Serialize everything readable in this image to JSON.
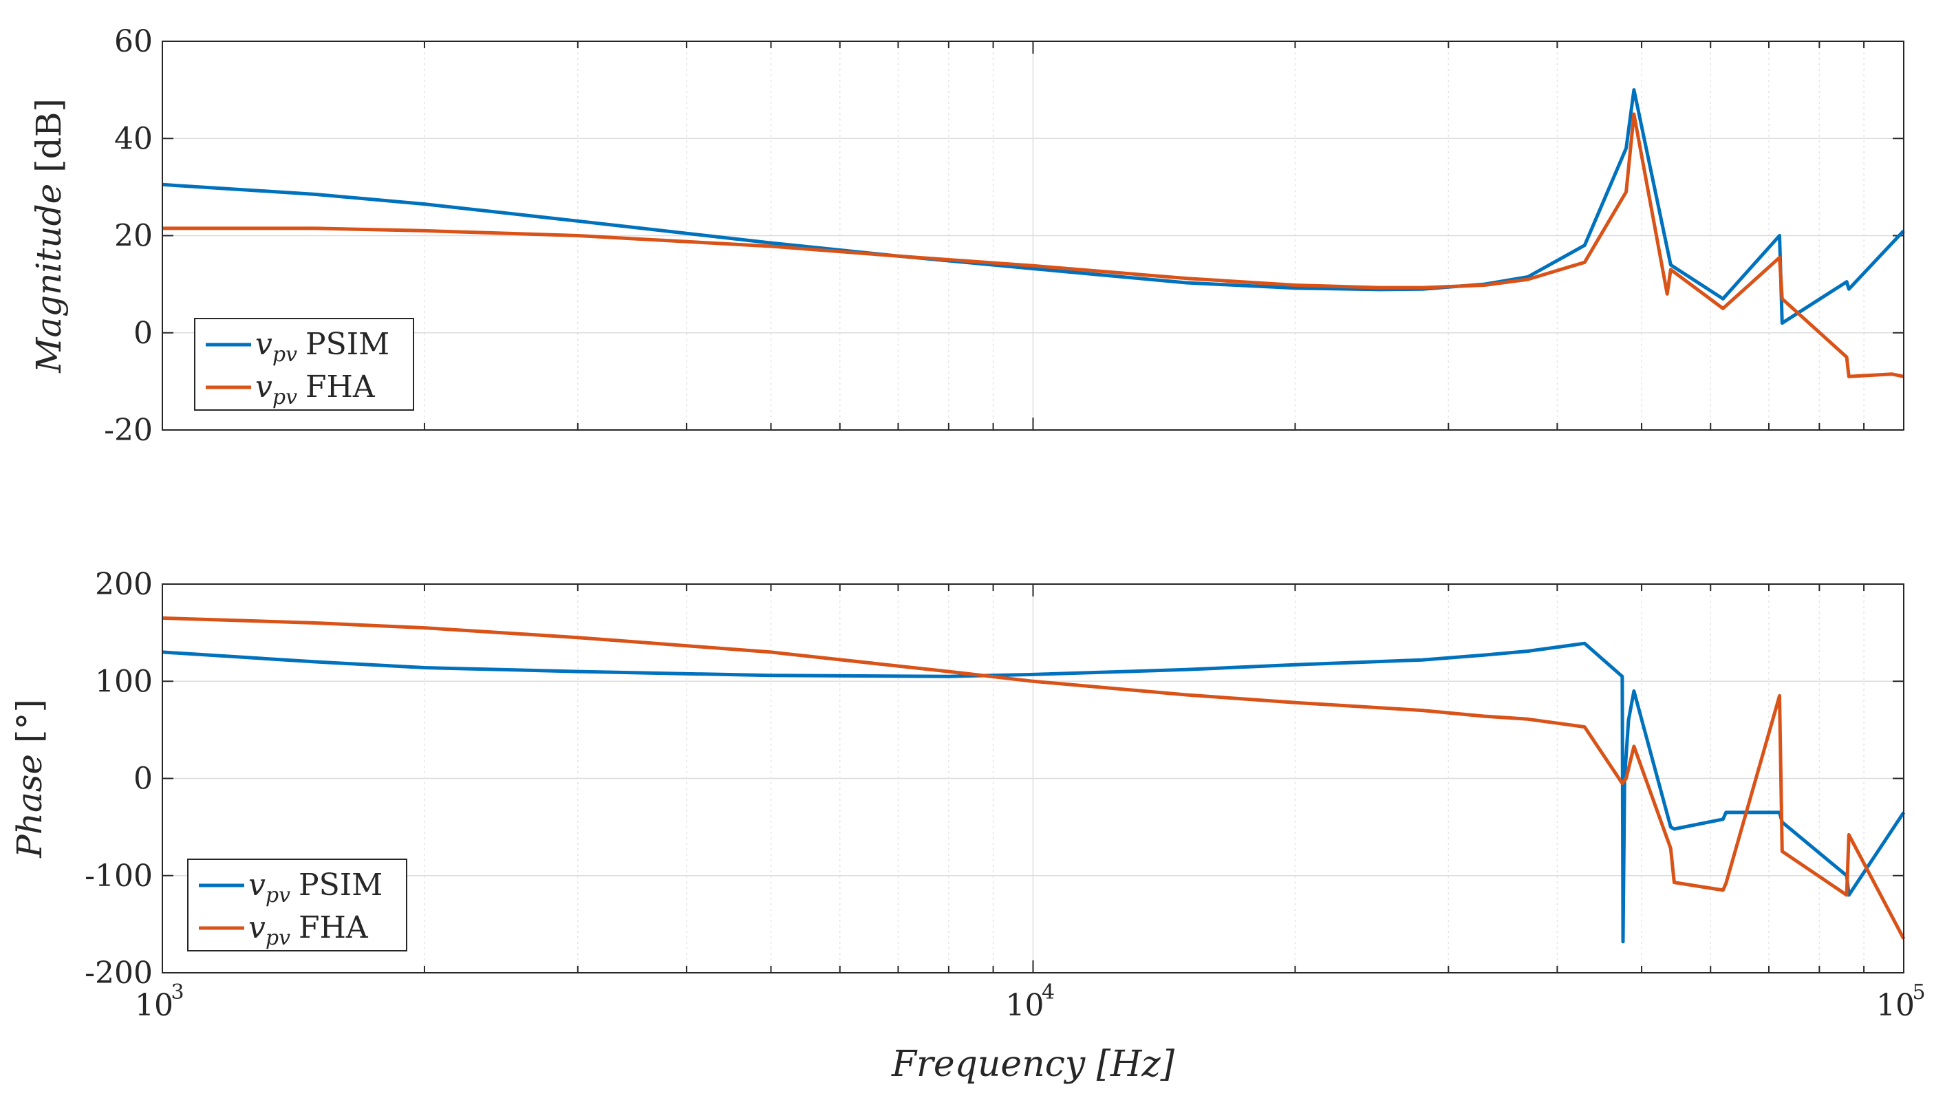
{
  "figure": {
    "colors": {
      "psim": "#0072BD",
      "fha": "#D95319",
      "axes": "#262626",
      "grid": "#dcdcdc"
    }
  },
  "chart_data": [
    {
      "type": "line",
      "panel": "magnitude",
      "xscale": "log",
      "xlim": [
        1000,
        100000
      ],
      "ylim": [
        -20,
        60
      ],
      "yticks": [
        "-20",
        "0",
        "20",
        "40",
        "60"
      ],
      "xticks": [],
      "ylabel": "Magnitude [dB]",
      "ylabel_main": "Magnitude",
      "ylabel_unit": "[dB]",
      "xlabel": "",
      "grid": true,
      "legend": {
        "position": "bottom-left",
        "entries": [
          {
            "var": "v",
            "sub": "pv",
            "text": "PSIM"
          },
          {
            "var": "v",
            "sub": "pv",
            "text": "FHA"
          }
        ]
      },
      "series": [
        {
          "name": "v_pv PSIM",
          "x": [
            1000,
            1500,
            2000,
            3000,
            5000,
            7000,
            10000,
            15000,
            20000,
            25000,
            28000,
            33000,
            37000,
            43000,
            48000,
            49000,
            54000,
            54500,
            62000,
            72000,
            72500,
            86000,
            86500,
            100000
          ],
          "y": [
            30.5,
            28.5,
            26.5,
            23,
            18.5,
            15.8,
            13.2,
            10.3,
            9.2,
            8.9,
            9,
            10,
            11.5,
            18,
            38,
            50,
            14,
            13.5,
            7,
            20,
            2,
            10.5,
            9,
            21
          ]
        },
        {
          "name": "v_pv FHA",
          "x": [
            1000,
            1500,
            2000,
            3000,
            5000,
            7000,
            10000,
            15000,
            20000,
            25000,
            28000,
            33000,
            37000,
            43000,
            48000,
            49000,
            53500,
            54000,
            62000,
            72000,
            72500,
            86000,
            86500,
            97000,
            100000
          ],
          "y": [
            21.5,
            21.5,
            21,
            20,
            17.8,
            15.8,
            13.8,
            11.2,
            9.8,
            9.3,
            9.3,
            9.8,
            11,
            14.5,
            29,
            45,
            8,
            13,
            5,
            15.5,
            7,
            -5,
            -9,
            -8.5,
            -9
          ]
        }
      ]
    },
    {
      "type": "line",
      "panel": "phase",
      "xscale": "log",
      "xlim": [
        1000,
        100000
      ],
      "ylim": [
        -200,
        200
      ],
      "yticks": [
        "-200",
        "-100",
        "0",
        "100",
        "200"
      ],
      "xticks": [
        {
          "base": "10",
          "exp": "3"
        },
        {
          "base": "10",
          "exp": "4"
        },
        {
          "base": "10",
          "exp": "5"
        }
      ],
      "ylabel": "Phase [°]",
      "ylabel_main": "Phase",
      "ylabel_unit": "[°]",
      "xlabel": "Frequency [Hz]",
      "xlabel_main": "Frequency",
      "xlabel_unit": "[Hz]",
      "grid": true,
      "legend": {
        "position": "bottom-left",
        "entries": [
          {
            "var": "v",
            "sub": "pv",
            "text": "PSIM"
          },
          {
            "var": "v",
            "sub": "pv",
            "text": "FHA"
          }
        ]
      },
      "series": [
        {
          "name": "v_pv PSIM",
          "x": [
            1000,
            1500,
            2000,
            3000,
            5000,
            8000,
            10000,
            15000,
            20000,
            28000,
            33000,
            37000,
            43000,
            47500,
            47600,
            47800,
            48300,
            49000,
            54000,
            54500,
            62000,
            62500,
            72000,
            72500,
            86000,
            86500,
            100000
          ],
          "y": [
            130,
            120,
            114,
            110,
            106,
            105,
            107,
            112,
            117,
            122,
            127,
            131,
            139,
            105,
            -168,
            0,
            60,
            90,
            -50,
            -52,
            -42,
            -35,
            -35,
            -45,
            -100,
            -120,
            -35
          ]
        },
        {
          "name": "v_pv FHA",
          "x": [
            1000,
            1500,
            2000,
            3000,
            5000,
            8000,
            10000,
            15000,
            20000,
            28000,
            33000,
            37000,
            43000,
            47500,
            48000,
            49000,
            54000,
            54500,
            62000,
            62500,
            72000,
            72500,
            86000,
            86500,
            100000
          ],
          "y": [
            165,
            160,
            155,
            145,
            130,
            110,
            100,
            86,
            78,
            70,
            64,
            61,
            53,
            -5,
            0,
            33,
            -72,
            -107,
            -115,
            -108,
            85,
            -75,
            -120,
            -58,
            -165
          ]
        }
      ]
    }
  ]
}
